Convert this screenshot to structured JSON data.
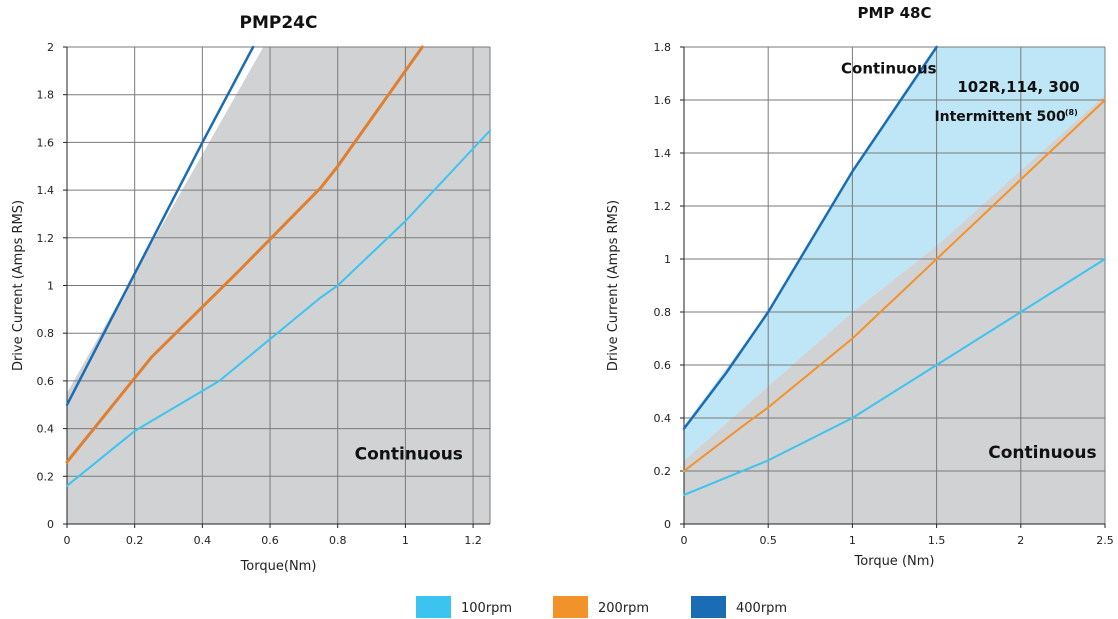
{
  "chart_data": [
    {
      "type": "line",
      "title": "PMP24C",
      "xlabel": "Torque(Nm)",
      "ylabel": "Drive Current (Amps RMS)",
      "xlim": [
        0,
        1.25
      ],
      "ylim": [
        0,
        2
      ],
      "xticks": [
        "0",
        "0.2",
        "0.4",
        "0.6",
        "0.8",
        "1",
        "1.2"
      ],
      "yticks": [
        "0",
        "0.2",
        "0.4",
        "0.6",
        "0.8",
        "1",
        "1.2",
        "1.4",
        "1.6",
        "1.8",
        "2"
      ],
      "grid": true,
      "regions": [
        {
          "label": "Continuous",
          "color": "#d1d2d4",
          "polygon": [
            [
              0,
              0
            ],
            [
              1.25,
              0
            ],
            [
              1.25,
              2
            ],
            [
              0.58,
              2
            ],
            [
              0,
              0.55
            ]
          ]
        }
      ],
      "series": [
        {
          "name": "100rpm",
          "color": "#3cc4f0",
          "width": 2,
          "x": [
            0,
            0.2,
            0.45,
            0.75,
            0.8,
            1.0,
            1.25
          ],
          "y": [
            0.16,
            0.39,
            0.6,
            0.95,
            1.0,
            1.27,
            1.65
          ]
        },
        {
          "name": "200rpm",
          "color": "#e07f2f",
          "width": 3,
          "x": [
            0,
            0.25,
            0.5,
            0.75,
            0.8,
            1.0,
            1.05
          ],
          "y": [
            0.26,
            0.7,
            1.05,
            1.41,
            1.5,
            1.9,
            2.0
          ]
        },
        {
          "name": "400rpm",
          "color": "#1a6db5",
          "width": 2.5,
          "x": [
            0,
            0.2,
            0.4,
            0.55
          ],
          "y": [
            0.5,
            1.05,
            1.6,
            2.0
          ]
        }
      ],
      "annotations": [
        {
          "text": "Continuous",
          "x": 1.17,
          "y": 0.27
        }
      ]
    },
    {
      "type": "line",
      "title": "PMP 48C",
      "xlabel": "Torque (Nm)",
      "ylabel": "Drive Current (Amps RMS)",
      "xlim": [
        0,
        2.5
      ],
      "ylim": [
        0,
        1.8
      ],
      "xticks": [
        "0",
        "0.5",
        "1",
        "1.5",
        "2",
        "2.5"
      ],
      "yticks": [
        "0",
        "0.2",
        "0.4",
        "0.6",
        "0.8",
        "1",
        "1.2",
        "1.4",
        "1.6",
        "1.8"
      ],
      "grid": true,
      "regions": [
        {
          "label": "Continuous",
          "color": "#d1d2d4",
          "polygon": [
            [
              0,
              0
            ],
            [
              2.5,
              0
            ],
            [
              2.5,
              1.62
            ],
            [
              1.5,
              1.05
            ],
            [
              1.0,
              0.8
            ],
            [
              0,
              0.24
            ]
          ]
        },
        {
          "label": "Continuous 102R,114, 300 / Intermittent 500",
          "color": "#bfe6f7",
          "polygon": [
            [
              0,
              0.24
            ],
            [
              0,
              0.37
            ],
            [
              0.5,
              0.8
            ],
            [
              1.0,
              1.32
            ],
            [
              1.5,
              1.8
            ],
            [
              2.5,
              1.8
            ],
            [
              2.5,
              1.62
            ],
            [
              1.5,
              1.05
            ],
            [
              1.0,
              0.8
            ]
          ]
        }
      ],
      "series": [
        {
          "name": "100rpm",
          "color": "#3cc4f0",
          "width": 2,
          "x": [
            0,
            0.5,
            1.0,
            1.5,
            2.0,
            2.5
          ],
          "y": [
            0.11,
            0.24,
            0.4,
            0.6,
            0.8,
            1.0
          ]
        },
        {
          "name": "200rpm",
          "color": "#f2922a",
          "width": 2,
          "x": [
            0,
            0.35,
            0.5,
            1.0,
            1.5,
            2.0,
            2.5
          ],
          "y": [
            0.2,
            0.37,
            0.44,
            0.7,
            1.0,
            1.3,
            1.6
          ]
        },
        {
          "name": "400rpm",
          "color": "#1a6db5",
          "width": 2.5,
          "x": [
            0,
            0.25,
            0.5,
            1.0,
            1.5
          ],
          "y": [
            0.36,
            0.57,
            0.8,
            1.33,
            1.8
          ]
        }
      ],
      "annotations": [
        {
          "text": "Continuous",
          "x": 2.45,
          "y": 0.25
        },
        {
          "text": "Continuous",
          "x": 1.5,
          "y": 1.7
        },
        {
          "text": "102R,114, 300",
          "x": 2.35,
          "y": 1.63
        },
        {
          "text": "Intermittent 500",
          "sup": "(8)",
          "x": 2.35,
          "y": 1.52
        }
      ]
    }
  ],
  "legend": {
    "placement": "bottom-center",
    "items": [
      {
        "label": "100rpm",
        "color": "#3cc4f0"
      },
      {
        "label": "200rpm",
        "color": "#f2922a"
      },
      {
        "label": "400rpm",
        "color": "#1a6db5"
      }
    ]
  }
}
